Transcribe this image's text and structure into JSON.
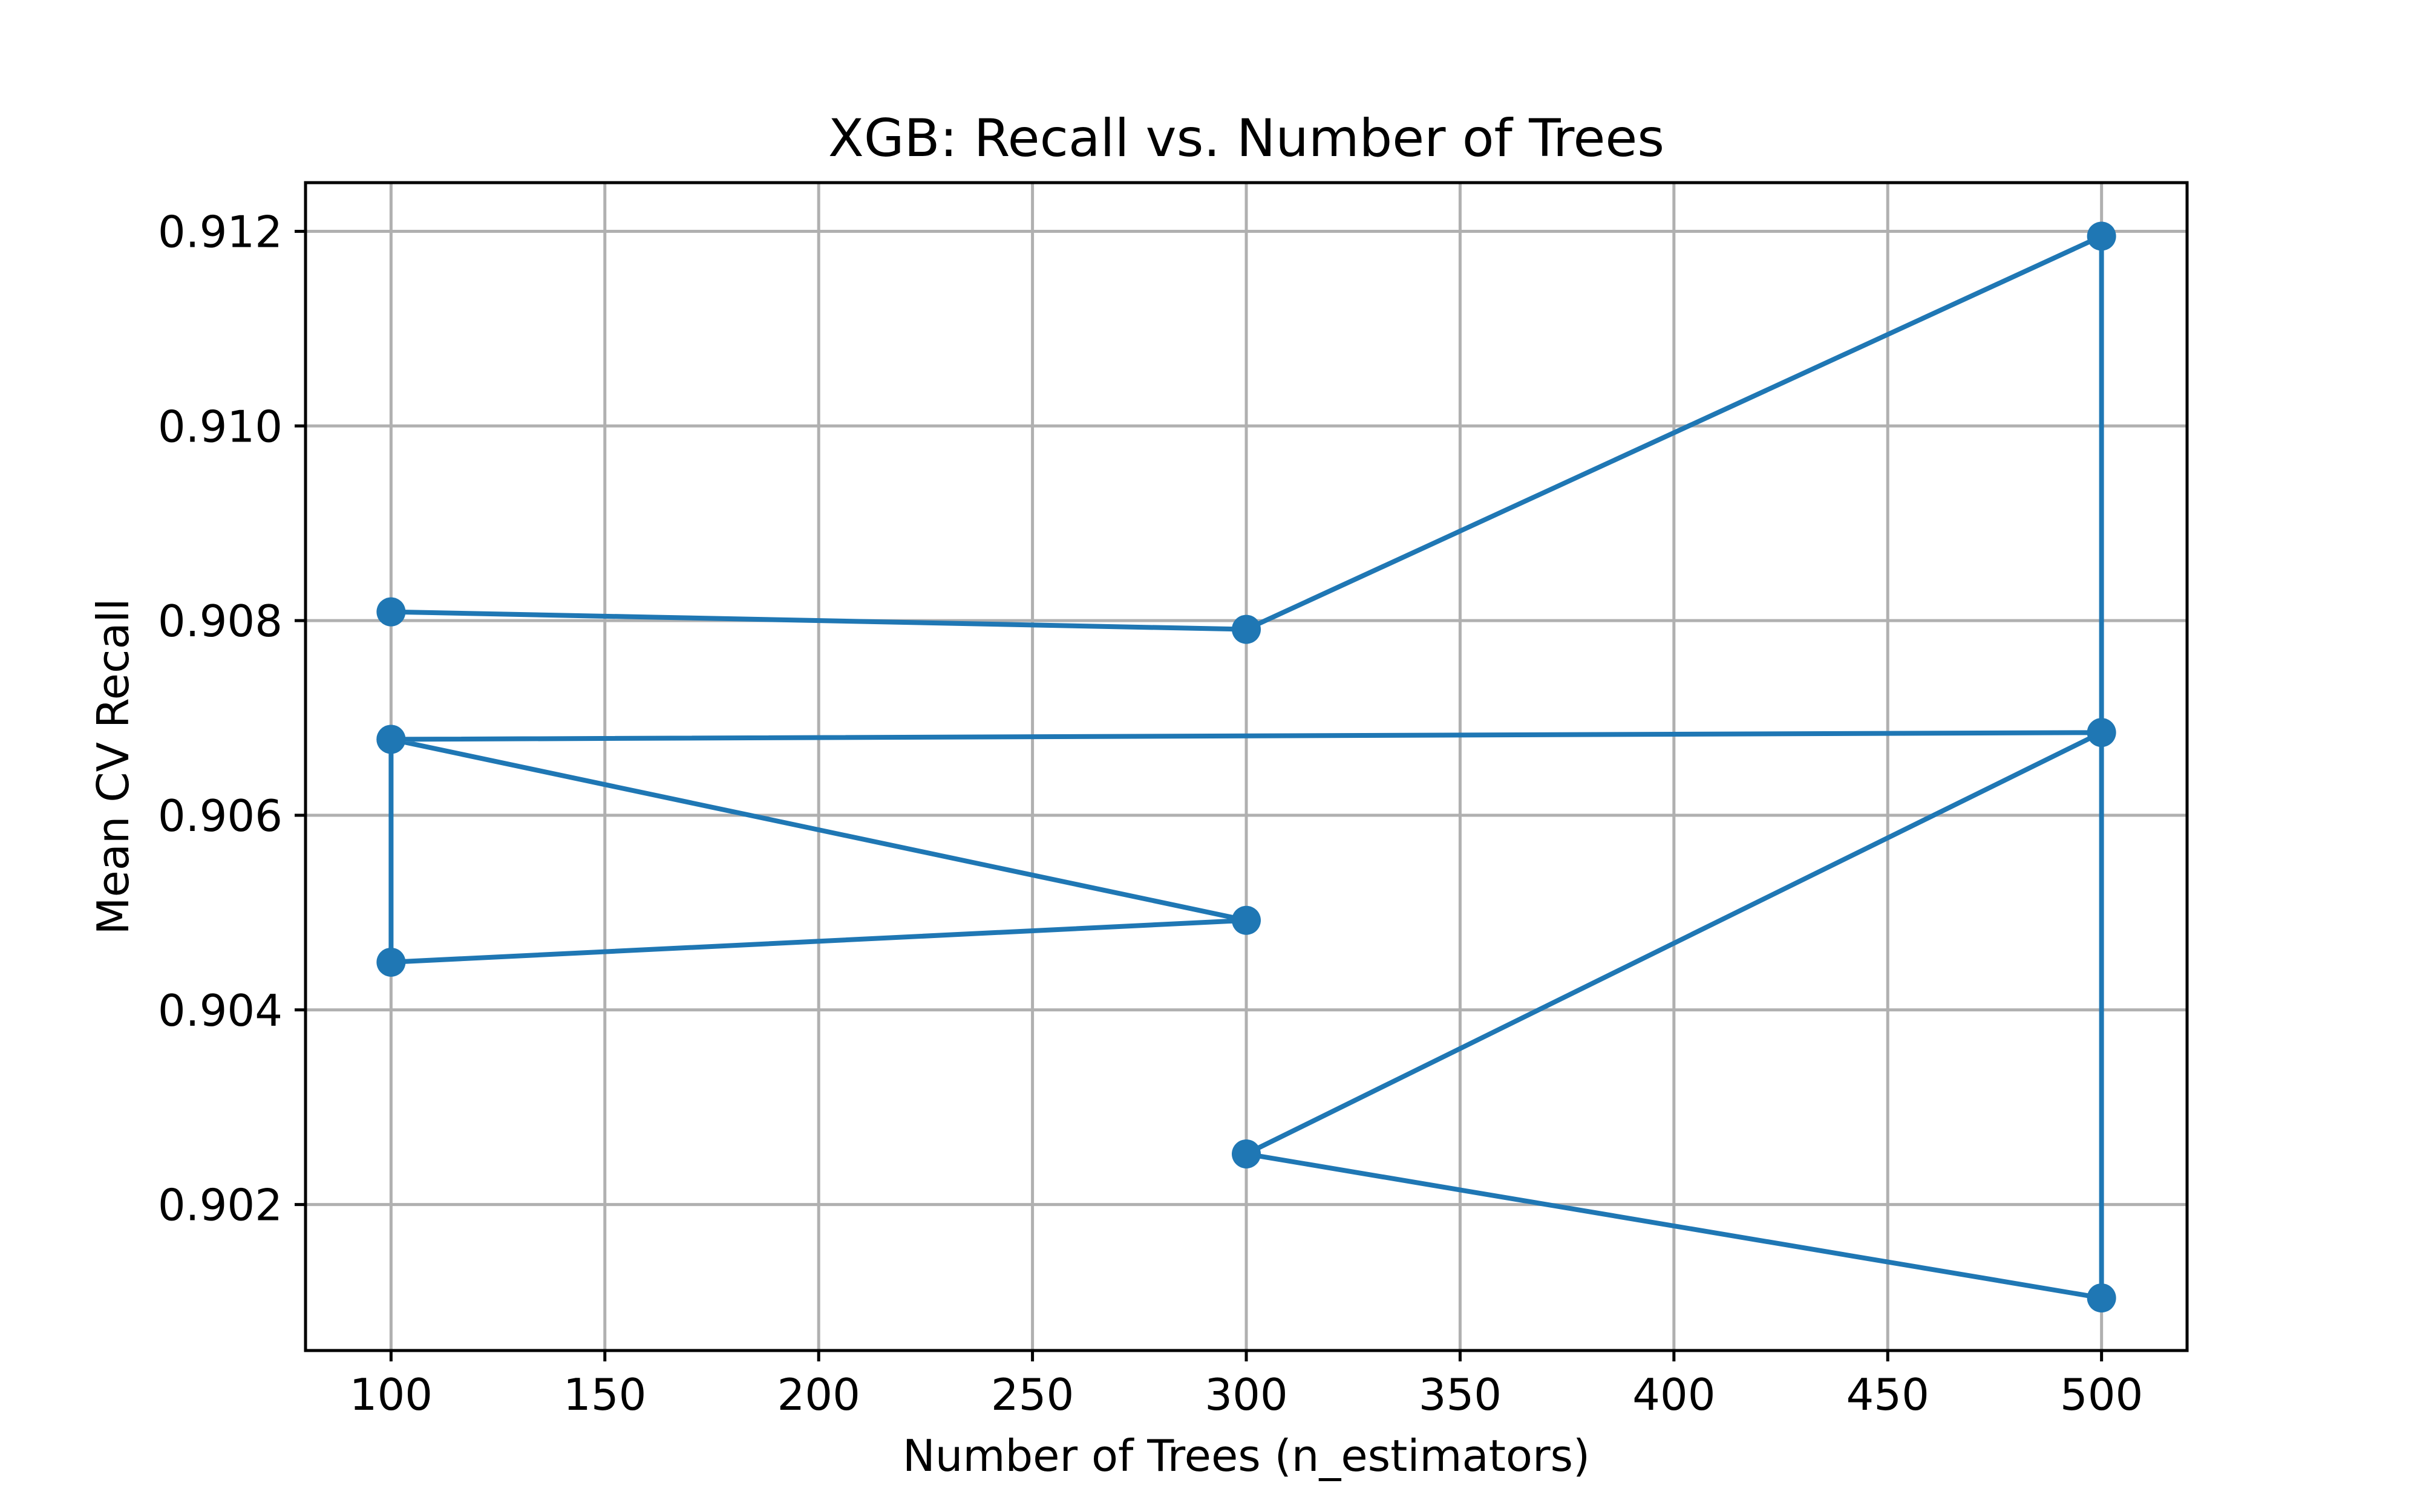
{
  "chart_data": {
    "type": "line",
    "title": "XGB: Recall vs. Number of Trees",
    "xlabel": "Number of Trees (n_estimators)",
    "ylabel": "Mean CV Recall",
    "xlim": [
      80,
      520
    ],
    "ylim": [
      0.9005,
      0.9125
    ],
    "x_ticks": [
      100,
      150,
      200,
      250,
      300,
      350,
      400,
      450,
      500
    ],
    "x_tick_labels": [
      "100",
      "150",
      "200",
      "250",
      "300",
      "350",
      "400",
      "450",
      "500"
    ],
    "y_ticks": [
      0.902,
      0.904,
      0.906,
      0.908,
      0.91,
      0.912
    ],
    "y_tick_labels": [
      "0.902",
      "0.904",
      "0.906",
      "0.908",
      "0.910",
      "0.912"
    ],
    "grid": true,
    "series": [
      {
        "color": "#1f77b4",
        "marker": "circle",
        "points": [
          {
            "x": 100,
            "y": 0.90809
          },
          {
            "x": 300,
            "y": 0.90791
          },
          {
            "x": 500,
            "y": 0.91195
          },
          {
            "x": 500,
            "y": 0.90104
          },
          {
            "x": 300,
            "y": 0.90252
          },
          {
            "x": 500,
            "y": 0.90685
          },
          {
            "x": 100,
            "y": 0.90678
          },
          {
            "x": 300,
            "y": 0.90492
          },
          {
            "x": 100,
            "y": 0.90449
          },
          {
            "x": 100,
            "y": 0.90678
          }
        ]
      }
    ]
  }
}
